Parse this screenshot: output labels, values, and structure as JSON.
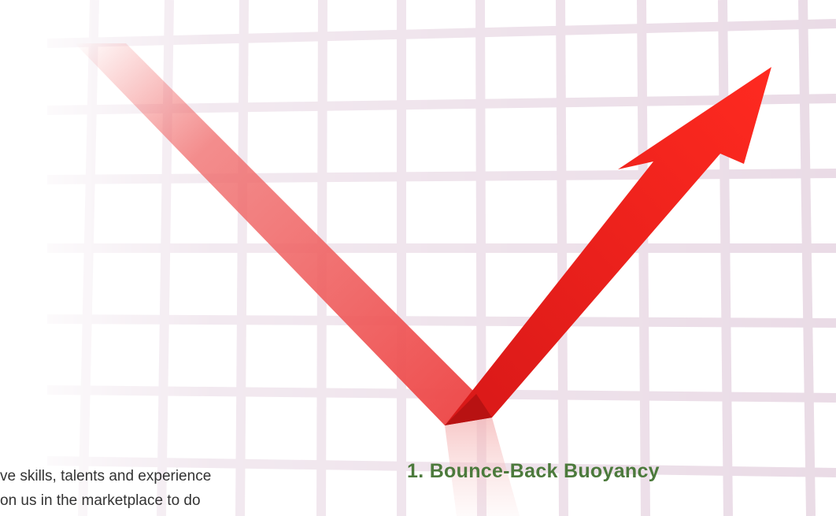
{
  "heading": "1. Bounce-Back Buoyancy",
  "body_lines": [
    "ve skills, talents and experience",
    "on us in the marketplace to do"
  ]
}
